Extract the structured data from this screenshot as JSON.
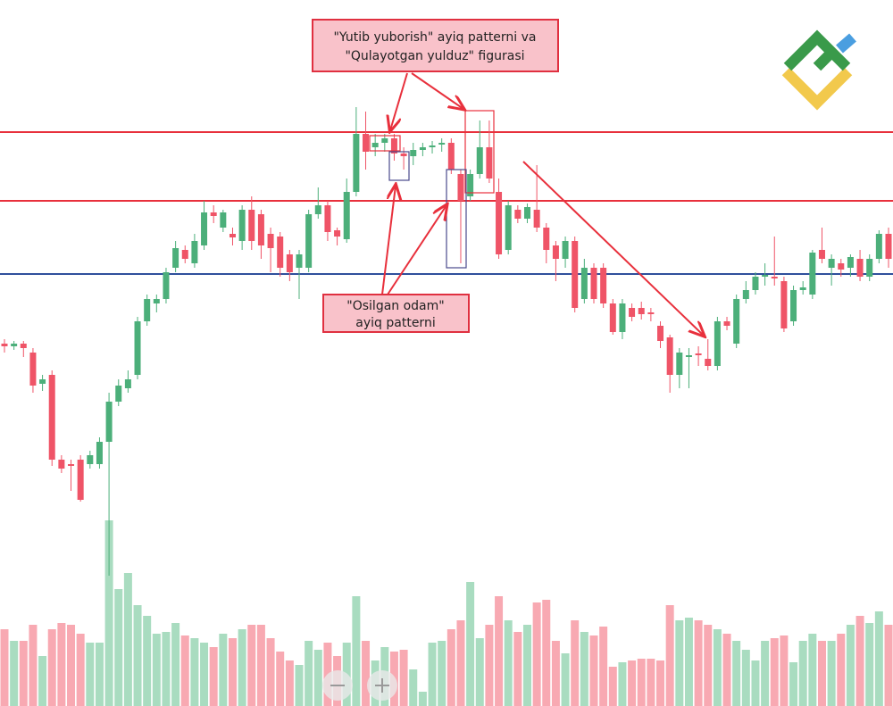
{
  "chart_data": {
    "type": "candlestick",
    "ylim": [
      9,
      800
    ],
    "open": [
      415,
      412,
      415,
      405,
      370,
      380,
      285,
      280,
      285,
      280,
      280,
      305,
      350,
      365,
      380,
      440,
      460,
      465,
      500,
      520,
      505,
      525,
      562,
      545,
      538,
      530,
      565,
      560,
      538,
      535,
      515,
      500,
      500,
      560,
      570,
      542,
      532,
      585,
      650,
      635,
      640,
      645,
      628,
      625,
      632,
      635,
      638,
      640,
      605,
      580,
      605,
      635,
      585,
      520,
      565,
      555,
      565,
      545,
      525,
      510,
      530,
      465,
      500,
      500,
      460,
      428,
      455,
      455,
      450,
      435,
      422,
      380,
      400,
      404,
      398,
      390,
      440,
      415,
      465,
      475,
      490,
      490,
      485,
      440,
      475,
      470,
      520,
      500,
      505,
      500,
      510,
      490,
      510,
      538
    ],
    "high": [
      420,
      418,
      418,
      410,
      380,
      385,
      290,
      285,
      290,
      295,
      310,
      360,
      375,
      385,
      445,
      470,
      470,
      500,
      530,
      525,
      538,
      575,
      570,
      565,
      545,
      570,
      580,
      565,
      545,
      540,
      520,
      520,
      565,
      590,
      575,
      545,
      600,
      680,
      675,
      650,
      650,
      650,
      635,
      640,
      640,
      642,
      645,
      645,
      610,
      610,
      665,
      665,
      600,
      575,
      570,
      572,
      615,
      550,
      530,
      535,
      535,
      510,
      505,
      505,
      465,
      465,
      460,
      462,
      455,
      440,
      425,
      410,
      410,
      412,
      420,
      445,
      445,
      470,
      485,
      495,
      505,
      535,
      490,
      480,
      485,
      520,
      545,
      515,
      510,
      515,
      520,
      515,
      542,
      545
    ],
    "low": [
      405,
      408,
      400,
      360,
      362,
      278,
      270,
      250,
      238,
      275,
      275,
      155,
      345,
      360,
      375,
      435,
      450,
      460,
      495,
      505,
      500,
      520,
      550,
      540,
      525,
      520,
      520,
      510,
      495,
      490,
      485,
      465,
      495,
      555,
      530,
      525,
      528,
      580,
      610,
      625,
      630,
      620,
      610,
      615,
      625,
      628,
      630,
      605,
      505,
      575,
      600,
      595,
      510,
      515,
      550,
      550,
      540,
      505,
      485,
      500,
      450,
      460,
      460,
      455,
      425,
      420,
      440,
      442,
      440,
      410,
      360,
      365,
      365,
      390,
      385,
      385,
      430,
      410,
      460,
      470,
      480,
      480,
      428,
      435,
      470,
      465,
      505,
      480,
      490,
      490,
      485,
      485,
      505,
      500
    ],
    "close": [
      412,
      415,
      410,
      368,
      375,
      285,
      275,
      278,
      240,
      290,
      305,
      350,
      368,
      375,
      440,
      465,
      465,
      495,
      522,
      510,
      530,
      562,
      558,
      562,
      534,
      565,
      530,
      525,
      522,
      500,
      495,
      515,
      560,
      570,
      540,
      535,
      585,
      650,
      630,
      640,
      645,
      628,
      625,
      632,
      635,
      637,
      640,
      610,
      575,
      605,
      635,
      600,
      515,
      570,
      555,
      568,
      545,
      520,
      510,
      530,
      455,
      500,
      465,
      460,
      428,
      460,
      445,
      448,
      448,
      418,
      380,
      405,
      402,
      402,
      390,
      440,
      435,
      465,
      475,
      490,
      492,
      488,
      432,
      475,
      478,
      517,
      510,
      510,
      498,
      512,
      490,
      510,
      538,
      510
    ],
    "volume": [
      95,
      82,
      82,
      100,
      65,
      95,
      102,
      100,
      90,
      80,
      80,
      217,
      140,
      158,
      122,
      110,
      90,
      92,
      102,
      88,
      85,
      80,
      75,
      90,
      85,
      95,
      100,
      100,
      85,
      70,
      60,
      55,
      82,
      72,
      80,
      65,
      80,
      132,
      82,
      60,
      75,
      70,
      72,
      50,
      25,
      80,
      82,
      95,
      105,
      148,
      85,
      100,
      132,
      105,
      92,
      100,
      125,
      128,
      82,
      68,
      105,
      92,
      88,
      98,
      53,
      58,
      60,
      62,
      62,
      60,
      122,
      105,
      108,
      105,
      100,
      95,
      90,
      82,
      72,
      60,
      82,
      85,
      88,
      58,
      82,
      90,
      82,
      82,
      90,
      100,
      110,
      102,
      115,
      100
    ],
    "up_color": "#4caf7a",
    "down_color": "#ef5467",
    "volume_up_color": "#a9dcc0",
    "volume_down_color": "#f8a9b2",
    "hlines": [
      {
        "value": 652,
        "color": "#e8303c"
      },
      {
        "value": 575,
        "color": "#e8303c"
      },
      {
        "value": 493,
        "color": "#2f4f9c"
      }
    ],
    "annotations": [
      {
        "lines": [
          "\"Yutib yuborish\" ayiq patterni va",
          "\"Qulayotgan yulduz\" figurasi"
        ]
      },
      {
        "lines": [
          "\"Osilgan odam\"",
          "ayiq patterni"
        ]
      }
    ]
  }
}
